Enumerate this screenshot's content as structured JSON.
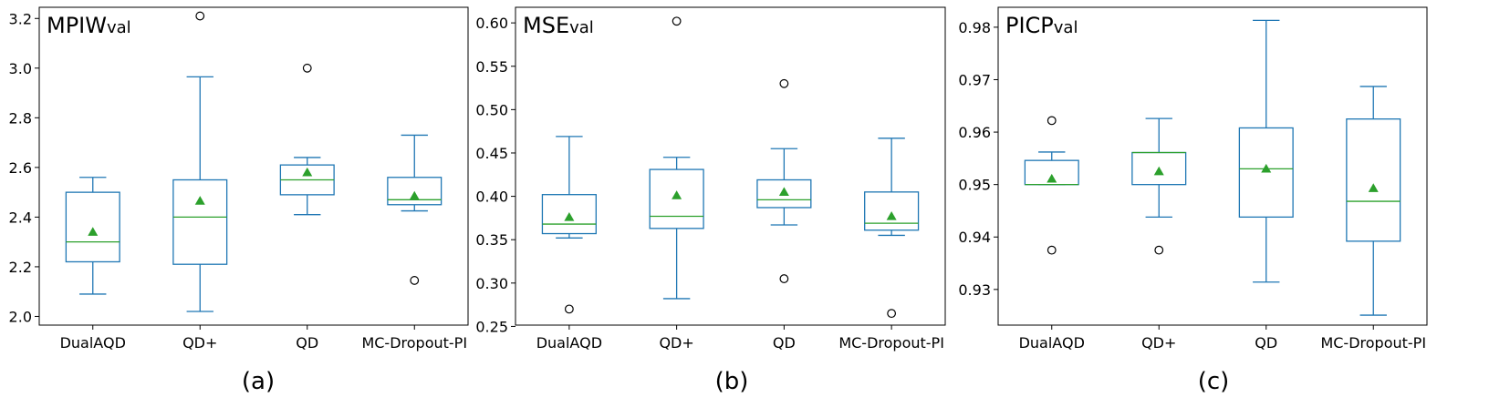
{
  "chart_data": [
    {
      "type": "box",
      "panel_label": "(a)",
      "title_main": "MPIW",
      "title_sub": "val",
      "categories": [
        "DualAQD",
        "QD+",
        "QD",
        "MC-Dropout-PI"
      ],
      "ylim": [
        1.965,
        3.245
      ],
      "yticks": [
        2.0,
        2.2,
        2.4,
        2.6,
        2.8,
        3.0,
        3.2
      ],
      "ytick_labels": [
        "2.0",
        "2.2",
        "2.4",
        "2.6",
        "2.8",
        "3.0",
        "3.2"
      ],
      "boxes": [
        {
          "whislo": 2.09,
          "q1": 2.22,
          "med": 2.3,
          "q3": 2.5,
          "whishi": 2.56,
          "mean": 2.34,
          "fliers": []
        },
        {
          "whislo": 2.02,
          "q1": 2.21,
          "med": 2.4,
          "q3": 2.55,
          "whishi": 2.965,
          "mean": 2.465,
          "fliers": [
            3.21
          ]
        },
        {
          "whislo": 2.41,
          "q1": 2.49,
          "med": 2.55,
          "q3": 2.61,
          "whishi": 2.64,
          "mean": 2.58,
          "fliers": [
            3.0
          ]
        },
        {
          "whislo": 2.425,
          "q1": 2.45,
          "med": 2.47,
          "q3": 2.56,
          "whishi": 2.73,
          "mean": 2.485,
          "fliers": [
            2.145
          ]
        }
      ]
    },
    {
      "type": "box",
      "panel_label": "(b)",
      "title_main": "MSE",
      "title_sub": "val",
      "categories": [
        "DualAQD",
        "QD+",
        "QD",
        "MC-Dropout-PI"
      ],
      "ylim": [
        0.2515,
        0.618
      ],
      "yticks": [
        0.25,
        0.3,
        0.35,
        0.4,
        0.45,
        0.5,
        0.55,
        0.6
      ],
      "ytick_labels": [
        "0.25",
        "0.30",
        "0.35",
        "0.40",
        "0.45",
        "0.50",
        "0.55",
        "0.60"
      ],
      "boxes": [
        {
          "whislo": 0.352,
          "q1": 0.357,
          "med": 0.368,
          "q3": 0.402,
          "whishi": 0.469,
          "mean": 0.376,
          "fliers": [
            0.27
          ]
        },
        {
          "whislo": 0.282,
          "q1": 0.363,
          "med": 0.377,
          "q3": 0.431,
          "whishi": 0.445,
          "mean": 0.401,
          "fliers": [
            0.602
          ]
        },
        {
          "whislo": 0.367,
          "q1": 0.387,
          "med": 0.396,
          "q3": 0.419,
          "whishi": 0.455,
          "mean": 0.405,
          "fliers": [
            0.305,
            0.53
          ]
        },
        {
          "whislo": 0.355,
          "q1": 0.361,
          "med": 0.369,
          "q3": 0.405,
          "whishi": 0.467,
          "mean": 0.377,
          "fliers": [
            0.265
          ]
        }
      ]
    },
    {
      "type": "box",
      "panel_label": "(c)",
      "title_main": "PICP",
      "title_sub": "val",
      "categories": [
        "DualAQD",
        "QD+",
        "QD",
        "MC-Dropout-PI"
      ],
      "ylim": [
        0.9232,
        0.9838
      ],
      "yticks": [
        0.93,
        0.94,
        0.95,
        0.96,
        0.97,
        0.98
      ],
      "ytick_labels": [
        "0.93",
        "0.94",
        "0.95",
        "0.96",
        "0.97",
        "0.98"
      ],
      "boxes": [
        {
          "whislo": 0.95,
          "q1": 0.95,
          "med": 0.95,
          "q3": 0.9546,
          "whishi": 0.9562,
          "mean": 0.9511,
          "fliers": [
            0.9375,
            0.9622
          ]
        },
        {
          "whislo": 0.9438,
          "q1": 0.95,
          "med": 0.9561,
          "q3": 0.9561,
          "whishi": 0.9626,
          "mean": 0.9525,
          "fliers": [
            0.9375
          ]
        },
        {
          "whislo": 0.9314,
          "q1": 0.9438,
          "med": 0.953,
          "q3": 0.9608,
          "whishi": 0.9813,
          "mean": 0.953,
          "fliers": []
        },
        {
          "whislo": 0.9251,
          "q1": 0.9392,
          "med": 0.9468,
          "q3": 0.9625,
          "whishi": 0.9687,
          "mean": 0.9493,
          "fliers": []
        }
      ]
    }
  ]
}
